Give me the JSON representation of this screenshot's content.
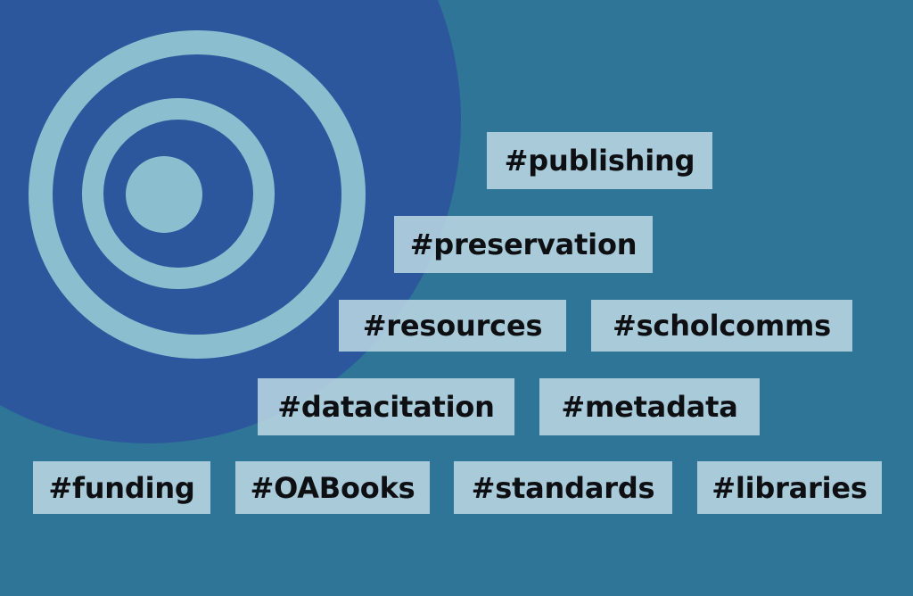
{
  "colors": {
    "background": "#2f7597",
    "big_circle": "#2c579c",
    "rings": "#8bbfd0",
    "tag_background": "rgba(186, 214, 226, 0.88)",
    "tag_text": "#0d0f12"
  },
  "icon": "concentric-circles-logo",
  "tags": [
    "#publishing",
    "#preservation",
    "#resources",
    "#scholcomms",
    "#datacitation",
    "#metadata",
    "#funding",
    "#OABooks",
    "#standards",
    "#libraries"
  ]
}
